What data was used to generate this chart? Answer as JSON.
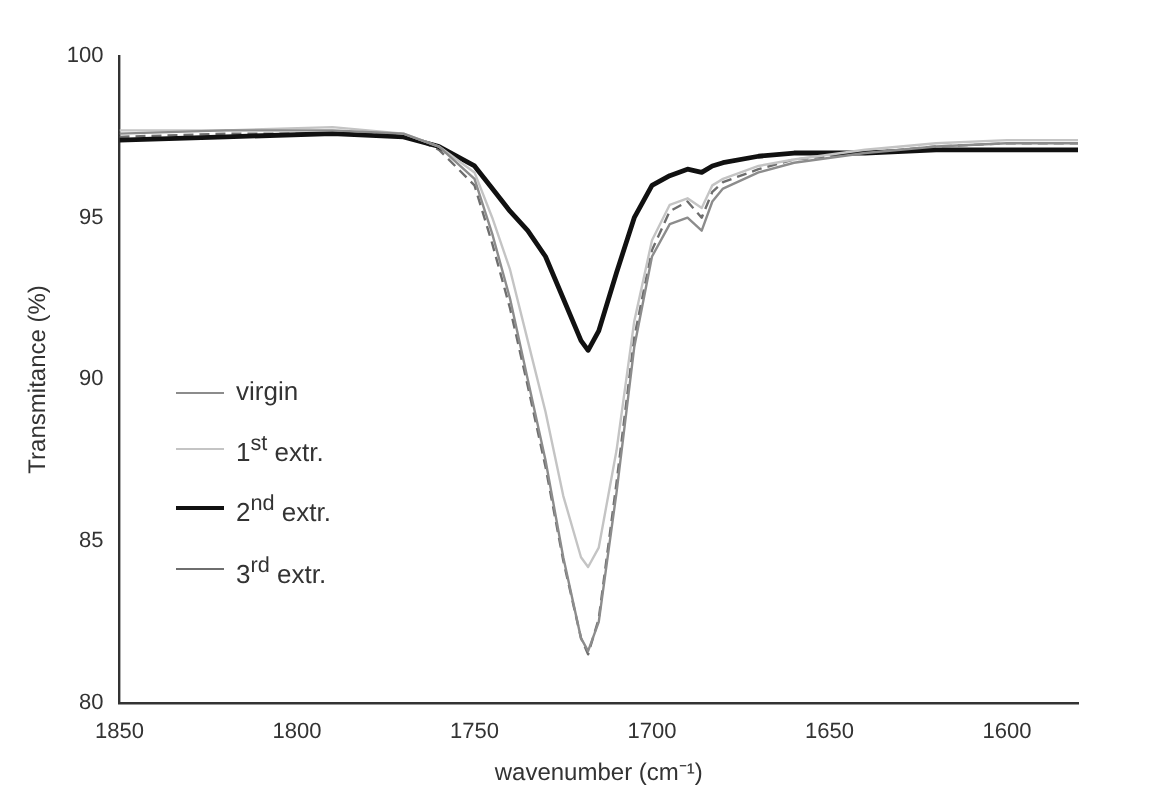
{
  "chart_data": {
    "type": "line",
    "xlabel": "wavenumber (cm⁻¹)",
    "ylabel": "Transmitance (%)",
    "x": [
      1850,
      1820,
      1790,
      1770,
      1760,
      1750,
      1745,
      1740,
      1735,
      1730,
      1725,
      1720,
      1718,
      1715,
      1710,
      1705,
      1700,
      1695,
      1690,
      1686,
      1683,
      1680,
      1670,
      1660,
      1640,
      1620,
      1600,
      1580
    ],
    "series": [
      {
        "name": "virgin",
        "color": "#8c8c8c",
        "line_style": "solid",
        "values": [
          97.6,
          97.7,
          97.7,
          97.6,
          97.2,
          96.2,
          94.5,
          92.5,
          90.0,
          87.5,
          84.5,
          82.0,
          81.6,
          82.5,
          86.5,
          91.0,
          93.8,
          94.8,
          95.0,
          94.6,
          95.5,
          95.9,
          96.4,
          96.7,
          97.0,
          97.2,
          97.3,
          97.3
        ]
      },
      {
        "name": "1$^{st}$ extr.",
        "color": "#c4c4c4",
        "line_style": "solid",
        "values": [
          97.7,
          97.7,
          97.8,
          97.6,
          97.2,
          96.4,
          95.0,
          93.4,
          91.2,
          89.0,
          86.4,
          84.5,
          84.2,
          84.8,
          87.8,
          91.8,
          94.3,
          95.4,
          95.6,
          95.3,
          96.0,
          96.2,
          96.6,
          96.8,
          97.1,
          97.3,
          97.4,
          97.4
        ]
      },
      {
        "name": "2$^{nd}$ extr.",
        "color": "#111111",
        "line_style": "solid",
        "values": [
          97.4,
          97.5,
          97.6,
          97.5,
          97.2,
          96.6,
          95.9,
          95.2,
          94.6,
          93.8,
          92.5,
          91.2,
          90.9,
          91.5,
          93.3,
          95.0,
          96.0,
          96.3,
          96.5,
          96.4,
          96.6,
          96.7,
          96.9,
          97.0,
          97.0,
          97.1,
          97.1,
          97.1
        ]
      },
      {
        "name": "3$^{rd}$ extr.",
        "color": "#6e6e6e",
        "line_style": "dashed",
        "values": [
          97.5,
          97.6,
          97.6,
          97.6,
          97.1,
          96.0,
          94.2,
          92.2,
          89.8,
          87.3,
          84.4,
          82.0,
          81.5,
          82.6,
          86.8,
          91.3,
          94.0,
          95.2,
          95.5,
          95.0,
          95.8,
          96.1,
          96.5,
          96.8,
          97.0,
          97.2,
          97.3,
          97.3
        ]
      }
    ],
    "xlim": [
      1850,
      1580
    ],
    "xticks": [
      1850,
      1800,
      1750,
      1700,
      1650,
      1600
    ],
    "ylim": [
      80,
      100
    ],
    "yticks": [
      80,
      85,
      90,
      95,
      100
    ],
    "grid": false,
    "legend": "left",
    "marker": "none"
  }
}
